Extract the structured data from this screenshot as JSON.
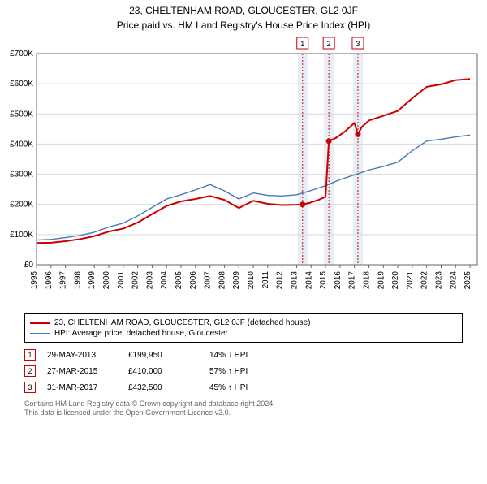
{
  "title": "23, CHELTENHAM ROAD, GLOUCESTER, GL2 0JF",
  "subtitle": "Price paid vs. HM Land Registry's House Price Index (HPI)",
  "chart": {
    "type": "line",
    "plot_bg": "#ffffff",
    "grid_color": "#d9d9d9",
    "axis_color": "#666666",
    "xlim": [
      1995,
      2025.5
    ],
    "ylim": [
      0,
      700000
    ],
    "yticks": [
      0,
      100000,
      200000,
      300000,
      400000,
      500000,
      600000,
      700000
    ],
    "ytick_labels": [
      "£0",
      "£100K",
      "£200K",
      "£300K",
      "£400K",
      "£500K",
      "£600K",
      "£700K"
    ],
    "xticks": [
      1995,
      1996,
      1997,
      1998,
      1999,
      2000,
      2001,
      2002,
      2003,
      2004,
      2005,
      2006,
      2007,
      2008,
      2009,
      2010,
      2011,
      2012,
      2013,
      2014,
      2015,
      2016,
      2017,
      2018,
      2019,
      2020,
      2021,
      2022,
      2023,
      2024,
      2025
    ],
    "tick_fontsize": 10,
    "marker_band_color": "#e8eef5",
    "marker_line_color": "#cc0000",
    "marker_box_border": "#cc0000",
    "marker_box_bg": "#ffffff",
    "marker_radius": 3.5,
    "series": [
      {
        "name": "property",
        "color": "#cc0000",
        "width": 2,
        "data": [
          [
            1995,
            72000
          ],
          [
            1996,
            73000
          ],
          [
            1997,
            78000
          ],
          [
            1998,
            85000
          ],
          [
            1999,
            95000
          ],
          [
            2000,
            110000
          ],
          [
            2001,
            120000
          ],
          [
            2002,
            140000
          ],
          [
            2003,
            168000
          ],
          [
            2004,
            195000
          ],
          [
            2005,
            210000
          ],
          [
            2006,
            218000
          ],
          [
            2007,
            228000
          ],
          [
            2008,
            215000
          ],
          [
            2009,
            188000
          ],
          [
            2010,
            212000
          ],
          [
            2011,
            202000
          ],
          [
            2012,
            198000
          ],
          [
            2013,
            199000
          ],
          [
            2013.41,
            199950
          ],
          [
            2013.9,
            205000
          ],
          [
            2014.5,
            215000
          ],
          [
            2015.0,
            225000
          ],
          [
            2015.23,
            410000
          ],
          [
            2015.7,
            420000
          ],
          [
            2016.3,
            440000
          ],
          [
            2017.0,
            470000
          ],
          [
            2017.24,
            432500
          ],
          [
            2017.5,
            456000
          ],
          [
            2018,
            478000
          ],
          [
            2019,
            494000
          ],
          [
            2020,
            510000
          ],
          [
            2021,
            552000
          ],
          [
            2022,
            590000
          ],
          [
            2023,
            598000
          ],
          [
            2024,
            612000
          ],
          [
            2025,
            616000
          ]
        ]
      },
      {
        "name": "hpi",
        "color": "#4a78b5",
        "width": 1.4,
        "data": [
          [
            1995,
            82000
          ],
          [
            1996,
            84000
          ],
          [
            1997,
            90000
          ],
          [
            1998,
            97000
          ],
          [
            1999,
            108000
          ],
          [
            2000,
            125000
          ],
          [
            2001,
            138000
          ],
          [
            2002,
            162000
          ],
          [
            2003,
            190000
          ],
          [
            2004,
            218000
          ],
          [
            2005,
            232000
          ],
          [
            2006,
            248000
          ],
          [
            2007,
            266000
          ],
          [
            2008,
            245000
          ],
          [
            2009,
            218000
          ],
          [
            2010,
            238000
          ],
          [
            2011,
            230000
          ],
          [
            2012,
            228000
          ],
          [
            2013,
            232000
          ],
          [
            2014,
            246000
          ],
          [
            2015,
            262000
          ],
          [
            2016,
            282000
          ],
          [
            2017,
            298000
          ],
          [
            2018,
            314000
          ],
          [
            2019,
            326000
          ],
          [
            2020,
            340000
          ],
          [
            2021,
            378000
          ],
          [
            2022,
            410000
          ],
          [
            2023,
            416000
          ],
          [
            2024,
            424000
          ],
          [
            2025,
            430000
          ]
        ]
      }
    ],
    "markers": [
      {
        "n": "1",
        "x": 2013.41,
        "y": 199950
      },
      {
        "n": "2",
        "x": 2015.23,
        "y": 410000
      },
      {
        "n": "3",
        "x": 2017.24,
        "y": 432500
      }
    ]
  },
  "legend": [
    {
      "color": "#cc0000",
      "label": "23, CHELTENHAM ROAD, GLOUCESTER, GL2 0JF (detached house)"
    },
    {
      "color": "#4a78b5",
      "label": "HPI: Average price, detached house, Gloucester"
    }
  ],
  "events": [
    {
      "n": "1",
      "date": "29-MAY-2013",
      "price": "£199,950",
      "diff": "14% ↓ HPI",
      "border": "#cc0000"
    },
    {
      "n": "2",
      "date": "27-MAR-2015",
      "price": "£410,000",
      "diff": "57% ↑ HPI",
      "border": "#cc0000"
    },
    {
      "n": "3",
      "date": "31-MAR-2017",
      "price": "£432,500",
      "diff": "45% ↑ HPI",
      "border": "#cc0000"
    }
  ],
  "footer": [
    "Contains HM Land Registry data © Crown copyright and database right 2024.",
    "This data is licensed under the Open Government Licence v3.0."
  ]
}
